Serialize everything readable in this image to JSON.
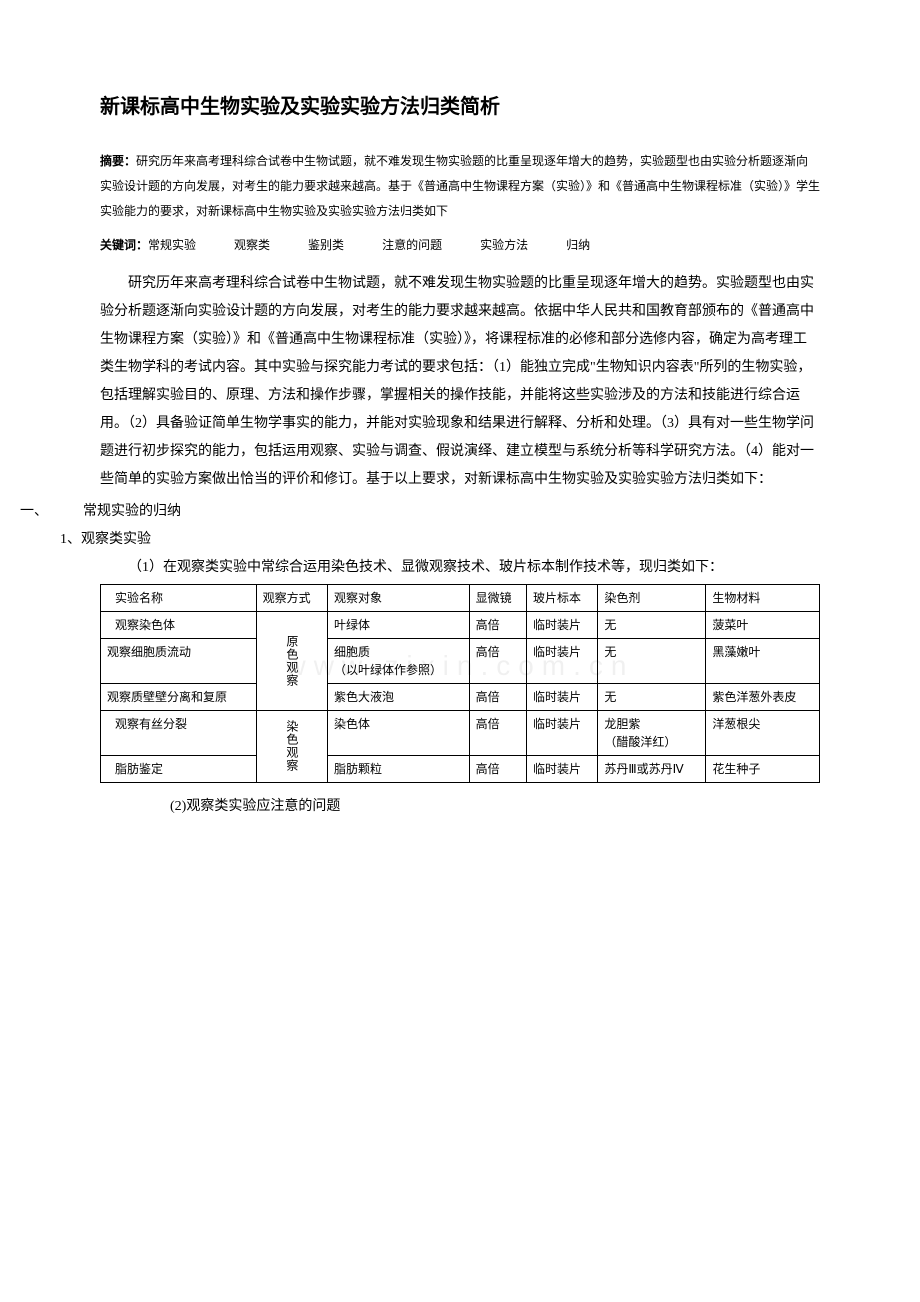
{
  "title": "新课标高中生物实验及实验实验方法归类简析",
  "abstract": {
    "label": "摘要：",
    "text": "研究历年来高考理科综合试卷中生物试题，就不难发现生物实验题的比重呈现逐年增大的趋势，实验题型也由实验分析题逐渐向实验设计题的方向发展，对考生的能力要求越来越高。基于《普通高中生物课程方案（实验）》和《普通高中生物课程标准（实验）》学生实验能力的要求，对新课标高中生物实验及实验实验方法归类如下"
  },
  "keywords": {
    "label": "关键词：",
    "items": [
      "常规实验",
      "观察类",
      "鉴别类",
      "注意的问题",
      "实验方法",
      "归纳"
    ]
  },
  "body": "研究历年来高考理科综合试卷中生物试题，就不难发现生物实验题的比重呈现逐年增大的趋势。实验题型也由实验分析题逐渐向实验设计题的方向发展，对考生的能力要求越来越高。依据中华人民共和国教育部颁布的《普通高中生物课程方案（实验）》和《普通高中生物课程标准（实验）》，将课程标准的必修和部分选修内容，确定为高考理工类生物学科的考试内容。其中实验与探究能力考试的要求包括：（1）能独立完成\"生物知识内容表\"所列的生物实验，包括理解实验目的、原理、方法和操作步骤，掌握相关的操作技能，并能将这些实验涉及的方法和技能进行综合运用。（2）具备验证简单生物学事实的能力，并能对实验现象和结果进行解释、分析和处理。（3）具有对一些生物学问题进行初步探究的能力，包括运用观察、实验与调查、假说演绎、建立模型与系统分析等科学研究方法。（4）能对一些简单的实验方案做出恰当的评价和修订。基于以上要求，对新课标高中生物实验及实验实验方法归类如下：",
  "section1": {
    "heading": "一、　　　常规实验的归纳",
    "sub1": "1、观察类实验",
    "sub1_1": "（1）在观察类实验中常综合运用染色技术、显微观察技术、玻片标本制作技术等，现归类如下：",
    "sub1_2": "(2)观察类实验应注意的问题"
  },
  "table": {
    "headers": [
      "实验名称",
      "观察方式",
      "观察对象",
      "显微镜",
      "玻片标本",
      "染色剂",
      "生物材料"
    ],
    "group1_label": "原色观察",
    "group2_label": "染色观察",
    "rows": [
      {
        "name": "观察染色体",
        "object": "叶绿体",
        "scope": "高倍",
        "slide": "临时装片",
        "stain": "无",
        "material": "菠菜叶"
      },
      {
        "name": "观察细胞质流动",
        "object": "细胞质\n（以叶绿体作参照）",
        "scope": "高倍",
        "slide": "临时装片",
        "stain": "无",
        "material": "黑藻嫩叶"
      },
      {
        "name": "观察质壁壁分离和复原",
        "object": "紫色大液泡",
        "scope": "高倍",
        "slide": "临时装片",
        "stain": "无",
        "material": "紫色洋葱外表皮"
      },
      {
        "name": "观察有丝分裂",
        "object": "染色体",
        "scope": "高倍",
        "slide": "临时装片",
        "stain": "龙胆紫\n（醋酸洋红）",
        "material": "洋葱根尖"
      },
      {
        "name": "脂肪鉴定",
        "object": "脂肪颗粒",
        "scope": "高倍",
        "slide": "临时装片",
        "stain": "苏丹Ⅲ或苏丹Ⅳ",
        "material": "花生种子"
      }
    ]
  },
  "watermark": "www.zixin.com.cn"
}
